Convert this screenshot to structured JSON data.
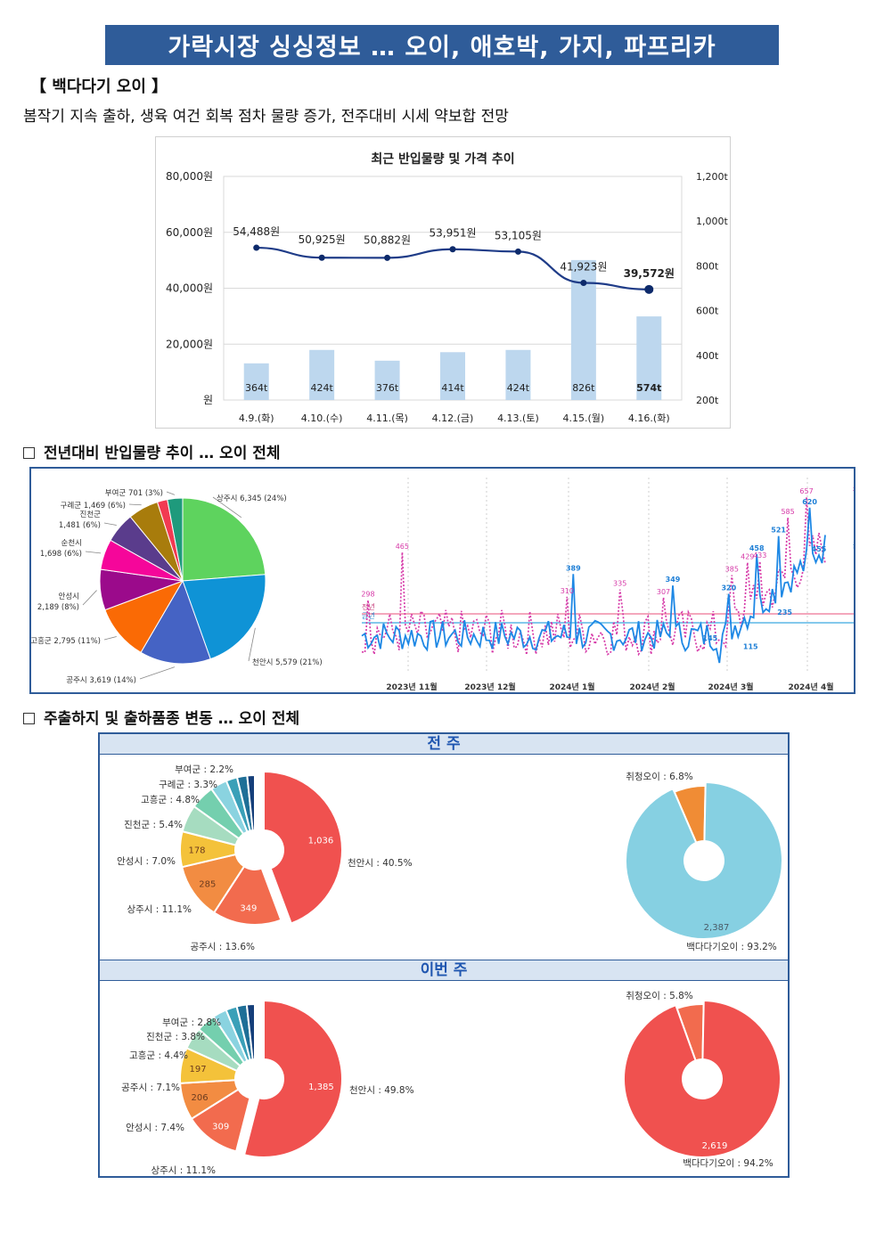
{
  "title": "가락시장 싱싱정보 … 오이, 애호박, 가지, 파프리카",
  "section_label": "【 백다다기 오이 】",
  "summary": "봄작기 지속 출하, 생육 여건 회복 점차 물량 증가, 전주대비 시세 약보합 전망",
  "chart1": {
    "title": "최근 반입물량 및 가격 추이",
    "left_ticks": [
      "80,000원",
      "60,000원",
      "40,000원",
      "20,000원",
      "원"
    ],
    "right_ticks": [
      "1,200t",
      "1,000t",
      "800t",
      "600t",
      "400t",
      "200t"
    ],
    "chart_data": {
      "type": "bar",
      "categories": [
        "4.9.(화)",
        "4.10.(수)",
        "4.11.(목)",
        "4.12.(금)",
        "4.13.(토)",
        "4.15.(월)",
        "4.16.(화)"
      ],
      "series": [
        {
          "values": [
            364,
            424,
            376,
            414,
            424,
            826,
            574
          ],
          "labels": [
            "364t",
            "424t",
            "376t",
            "414t",
            "424t",
            "826t",
            "574t"
          ],
          "axis": "right"
        },
        {
          "values": [
            54488,
            50925,
            50882,
            53951,
            53105,
            41923,
            39572
          ],
          "labels": [
            "54,488원",
            "50,925원",
            "50,882원",
            "53,951원",
            "53,105원",
            "41,923원",
            "39,572원"
          ],
          "axis": "left",
          "type": "line"
        }
      ],
      "ylim_left": [
        0,
        80000
      ],
      "ylim_right": [
        200,
        1200
      ],
      "colors": {
        "bar": "#bdd7ee",
        "line": "#1f3c88"
      }
    }
  },
  "heading2": "전년대비 반입물량 추이 … 오이 전체",
  "pie_origin": {
    "chart_data": {
      "type": "pie",
      "slices": [
        {
          "label": "상주시 6,345 (24%)",
          "value": 24,
          "color": "#5ed35e"
        },
        {
          "label": "천안시 5,579 (21%)",
          "value": 21,
          "color": "#0f93d6"
        },
        {
          "label": "공주시 3,619 (14%)",
          "value": 14,
          "color": "#4563c4"
        },
        {
          "label": "고흥군 2,795 (11%)",
          "value": 11,
          "color": "#fa6a05"
        },
        {
          "label": "안성시 2,189 (8%)",
          "value": 8,
          "color": "#9b0a8b"
        },
        {
          "label": "순천시 1,698 (6%)",
          "value": 6,
          "color": "#f5069a"
        },
        {
          "label": "진천군 1,481 (6%)",
          "value": 6,
          "color": "#5a3c8c"
        },
        {
          "label": "구례군 1,469 (6%)",
          "value": 6,
          "color": "#a87c0c"
        },
        {
          "label": "",
          "value": 2,
          "color": "#f23a52"
        },
        {
          "label": "부여군 701 (3%)",
          "value": 3,
          "color": "#1e9a7c"
        }
      ]
    }
  },
  "trend": {
    "chart_data": {
      "type": "line",
      "x_labels": [
        "2023년 11월",
        "2023년 12월",
        "2024년 1월",
        "2024년 2월",
        "2024년 3월",
        "2024년 4월"
      ],
      "legend": {
        "last_year": "전년",
        "this_year": "금년"
      },
      "pink_labels": [
        "298",
        "465",
        "310",
        "335",
        "307",
        "385",
        "429",
        "433",
        "585",
        "657"
      ],
      "blue_labels": [
        "389",
        "349",
        "320",
        "458",
        "521",
        "620",
        "455",
        "235",
        "145",
        "115"
      ],
      "avg_labels": [
        "전년",
        "금년"
      ],
      "colors": {
        "last_year": "#d63aa8",
        "this_year": "#1e88e5"
      }
    }
  },
  "heading3": "주출하지 및 출하품종 변동 … 오이 전체",
  "week_prev": {
    "band": "전 주",
    "origin": {
      "chart_data": {
        "type": "pie",
        "slices": [
          {
            "label": "천안시 : 40.5%",
            "value": 40.5,
            "inner": "1,036",
            "color": "#f0514f"
          },
          {
            "label": "공주시 : 13.6%",
            "value": 13.6,
            "inner": "349",
            "color": "#f26b4e"
          },
          {
            "label": "상주시 : 11.1%",
            "value": 11.1,
            "inner": "285",
            "color": "#f28c42"
          },
          {
            "label": "안성시 : 7.0%",
            "value": 7.0,
            "inner": "178",
            "color": "#f4c23a"
          },
          {
            "label": "진천군 : 5.4%",
            "value": 5.4,
            "inner": "",
            "color": "#a6dcc0"
          },
          {
            "label": "고흥군 : 4.8%",
            "value": 4.8,
            "inner": "",
            "color": "#74cfae"
          },
          {
            "label": "구례군 : 3.3%",
            "value": 3.3,
            "inner": "",
            "color": "#8ad3e0"
          },
          {
            "label": "부여군 : 2.2%",
            "value": 2.2,
            "inner": "",
            "color": "#3aa0b8"
          },
          {
            "label": "",
            "value": 2.0,
            "inner": "",
            "color": "#1f6f97"
          },
          {
            "label": "",
            "value": 1.5,
            "inner": "",
            "color": "#153f7a"
          }
        ]
      }
    },
    "variety": {
      "chart_data": {
        "type": "pie",
        "slices": [
          {
            "label": "백다다기오이 : 93.2%",
            "value": 93.2,
            "inner": "2,387",
            "color": "#86d0e2"
          },
          {
            "label": "취청오이 : 6.8%",
            "value": 6.8,
            "inner": "",
            "color": "#f08c35"
          }
        ]
      }
    }
  },
  "week_this": {
    "band": "이번 주",
    "origin": {
      "chart_data": {
        "type": "pie",
        "slices": [
          {
            "label": "천안시 : 49.8%",
            "value": 49.8,
            "inner": "1,385",
            "color": "#f0514f"
          },
          {
            "label": "상주시 : 11.1%",
            "value": 11.1,
            "inner": "309",
            "color": "#f26b4e"
          },
          {
            "label": "안성시 : 7.4%",
            "value": 7.4,
            "inner": "206",
            "color": "#f28c42"
          },
          {
            "label": "공주시 : 7.1%",
            "value": 7.1,
            "inner": "197",
            "color": "#f4c23a"
          },
          {
            "label": "고흥군 : 4.4%",
            "value": 4.4,
            "inner": "",
            "color": "#a6dcc0"
          },
          {
            "label": "진천군 : 3.8%",
            "value": 3.8,
            "inner": "",
            "color": "#74cfae"
          },
          {
            "label": "부여군 : 2.8%",
            "value": 2.8,
            "inner": "",
            "color": "#8ad3e0"
          },
          {
            "label": "",
            "value": 2.2,
            "inner": "",
            "color": "#3aa0b8"
          },
          {
            "label": "",
            "value": 2.0,
            "inner": "",
            "color": "#1f6f97"
          },
          {
            "label": "",
            "value": 1.6,
            "inner": "",
            "color": "#153f7a"
          }
        ]
      }
    },
    "variety": {
      "chart_data": {
        "type": "pie",
        "slices": [
          {
            "label": "백다다기오이 : 94.2%",
            "value": 94.2,
            "inner": "2,619",
            "color": "#f0514f"
          },
          {
            "label": "취청오이 : 5.8%",
            "value": 5.8,
            "inner": "",
            "color": "#f26b4e"
          }
        ]
      }
    }
  }
}
